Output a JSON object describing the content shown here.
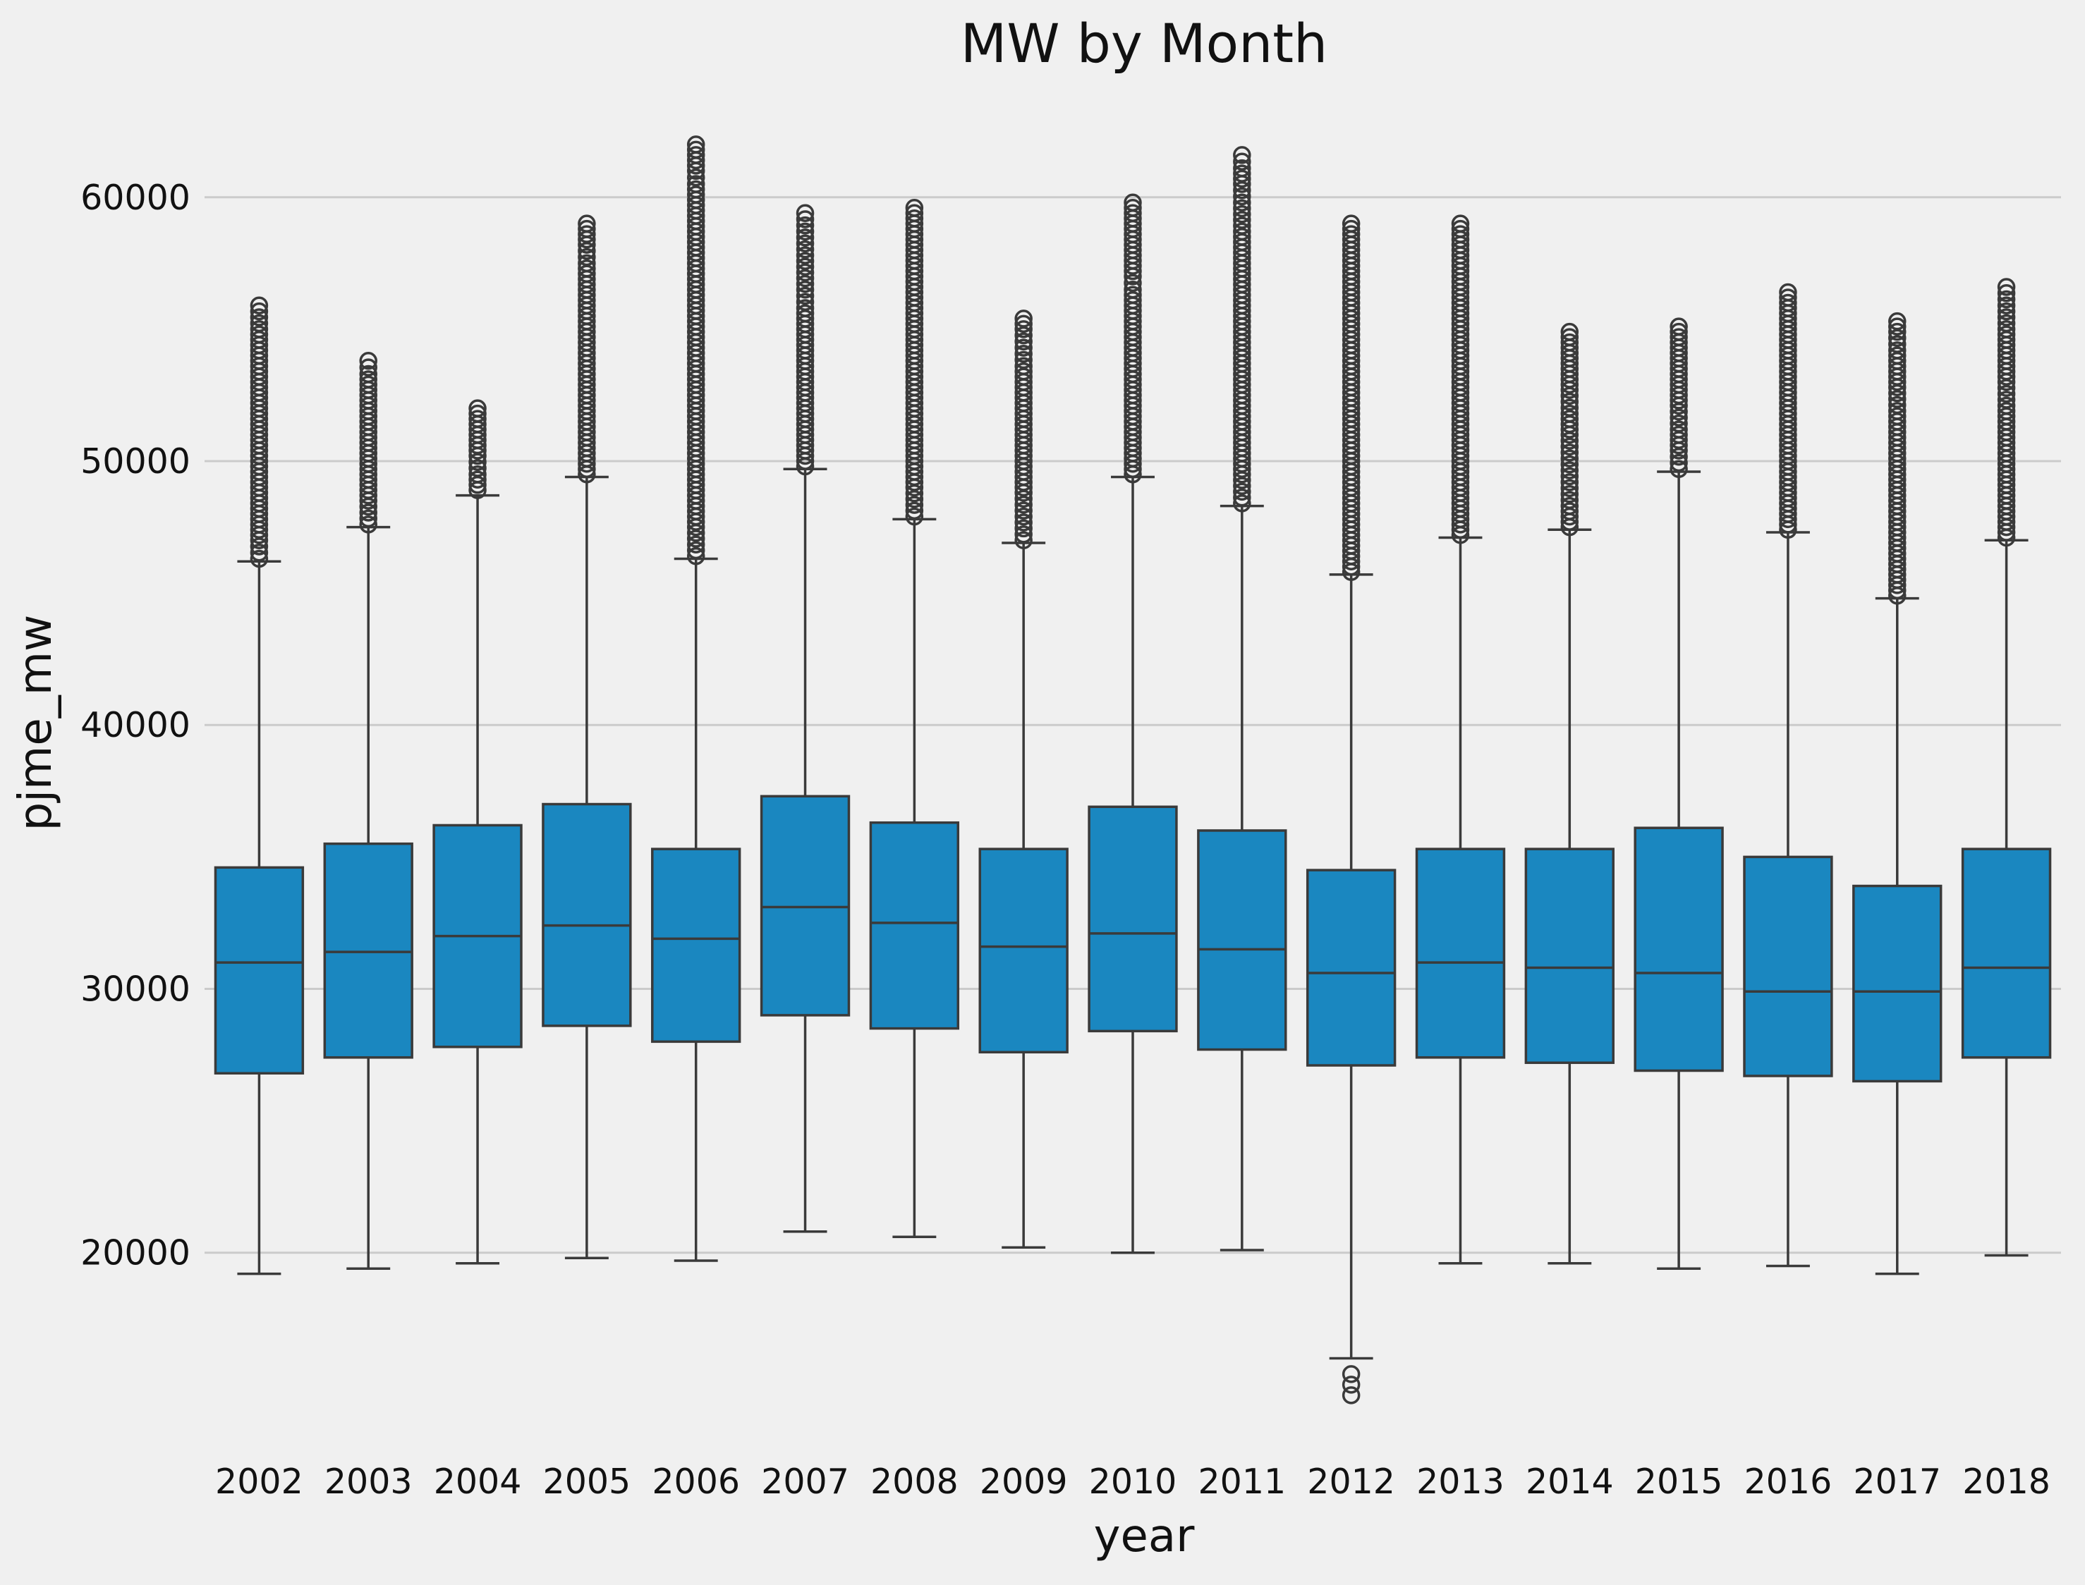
{
  "chart_data": {
    "type": "box",
    "title": "MW by Month",
    "xlabel": "year",
    "ylabel": "pjme_mw",
    "ylim": [
      13500,
      63200
    ],
    "yticks": [
      20000,
      30000,
      40000,
      50000,
      60000
    ],
    "grid": "y-only",
    "legend": "none",
    "box_color": "#1a87c0",
    "categories": [
      "2002",
      "2003",
      "2004",
      "2005",
      "2006",
      "2007",
      "2008",
      "2009",
      "2010",
      "2011",
      "2012",
      "2013",
      "2014",
      "2015",
      "2016",
      "2017",
      "2018"
    ],
    "series": [
      {
        "year": "2002",
        "whisker_low": 19200,
        "q1": 26800,
        "median": 31000,
        "q3": 34600,
        "whisker_high": 46200,
        "outliers_high": [
          46300,
          47000,
          48000,
          49000,
          50000,
          51000,
          52000,
          53000,
          54000,
          55000,
          55900
        ],
        "outliers_low": []
      },
      {
        "year": "2003",
        "whisker_low": 19400,
        "q1": 27400,
        "median": 31400,
        "q3": 35500,
        "whisker_high": 47500,
        "outliers_high": [
          47600,
          48500,
          49500,
          50500,
          51500,
          52500,
          53300,
          53800
        ],
        "outliers_low": []
      },
      {
        "year": "2004",
        "whisker_low": 19600,
        "q1": 27800,
        "median": 32000,
        "q3": 36200,
        "whisker_high": 48700,
        "outliers_high": [
          48900,
          49500,
          50200,
          51000,
          51600,
          52000
        ],
        "outliers_low": []
      },
      {
        "year": "2005",
        "whisker_low": 19800,
        "q1": 28600,
        "median": 32400,
        "q3": 37000,
        "whisker_high": 49400,
        "outliers_high": [
          49500,
          50500,
          51500,
          52500,
          53500,
          54500,
          55500,
          56500,
          57500,
          58200,
          59000
        ],
        "outliers_low": []
      },
      {
        "year": "2006",
        "whisker_low": 19700,
        "q1": 28000,
        "median": 31900,
        "q3": 35300,
        "whisker_high": 46300,
        "outliers_high": [
          46400,
          47500,
          48500,
          49500,
          50500,
          51500,
          52500,
          53500,
          54500,
          55500,
          56500,
          57500,
          58500,
          59500,
          60500,
          61000,
          61600,
          62000
        ],
        "outliers_low": []
      },
      {
        "year": "2007",
        "whisker_low": 20800,
        "q1": 29000,
        "median": 33100,
        "q3": 37300,
        "whisker_high": 49700,
        "outliers_high": [
          49800,
          50800,
          51800,
          52800,
          53800,
          54800,
          55800,
          56500,
          57800,
          58700,
          59400
        ],
        "outliers_low": []
      },
      {
        "year": "2008",
        "whisker_low": 20600,
        "q1": 28500,
        "median": 32500,
        "q3": 36300,
        "whisker_high": 47800,
        "outliers_high": [
          47900,
          49000,
          50000,
          51000,
          52000,
          53000,
          54000,
          55000,
          56200,
          57200,
          58200,
          59000,
          59600
        ],
        "outliers_low": []
      },
      {
        "year": "2009",
        "whisker_low": 20200,
        "q1": 27600,
        "median": 31600,
        "q3": 35300,
        "whisker_high": 46900,
        "outliers_high": [
          47000,
          47900,
          48800,
          49800,
          50800,
          51800,
          52800,
          53600,
          54300,
          55000,
          55400
        ],
        "outliers_low": []
      },
      {
        "year": "2010",
        "whisker_low": 20000,
        "q1": 28400,
        "median": 32100,
        "q3": 36900,
        "whisker_high": 49400,
        "outliers_high": [
          49500,
          50500,
          51500,
          52500,
          53500,
          54500,
          55500,
          56500,
          57000,
          58200,
          58800,
          59800
        ],
        "outliers_low": []
      },
      {
        "year": "2011",
        "whisker_low": 20100,
        "q1": 27700,
        "median": 31500,
        "q3": 36000,
        "whisker_high": 48300,
        "outliers_high": [
          48400,
          49500,
          50500,
          51500,
          52500,
          53500,
          54500,
          55500,
          56500,
          57500,
          58700,
          59800,
          60500,
          61100,
          61600
        ],
        "outliers_low": []
      },
      {
        "year": "2012",
        "whisker_low": 16000,
        "q1": 27100,
        "median": 30600,
        "q3": 34500,
        "whisker_high": 45700,
        "outliers_high": [
          45800,
          46800,
          47800,
          48800,
          49800,
          50800,
          51800,
          52800,
          53800,
          54800,
          55800,
          56600,
          57400,
          59000
        ],
        "outliers_low": [
          15400,
          15000,
          14600
        ]
      },
      {
        "year": "2013",
        "whisker_low": 19600,
        "q1": 27400,
        "median": 31000,
        "q3": 35300,
        "whisker_high": 47100,
        "outliers_high": [
          47200,
          48200,
          49200,
          50200,
          51200,
          52200,
          53200,
          54200,
          55200,
          56200,
          57200,
          58200,
          59000
        ],
        "outliers_low": []
      },
      {
        "year": "2014",
        "whisker_low": 19600,
        "q1": 27200,
        "median": 30800,
        "q3": 35300,
        "whisker_high": 47400,
        "outliers_high": [
          47500,
          48300,
          49200,
          50100,
          51000,
          51800,
          52700,
          53500,
          54300,
          54900
        ],
        "outliers_low": []
      },
      {
        "year": "2015",
        "whisker_low": 19400,
        "q1": 26900,
        "median": 30600,
        "q3": 36100,
        "whisker_high": 49600,
        "outliers_high": [
          49700,
          50400,
          51200,
          52100,
          52900,
          53500,
          54500,
          55100
        ],
        "outliers_low": []
      },
      {
        "year": "2016",
        "whisker_low": 19500,
        "q1": 26700,
        "median": 29900,
        "q3": 35000,
        "whisker_high": 47300,
        "outliers_high": [
          47400,
          48400,
          49400,
          50400,
          51400,
          52400,
          53400,
          54400,
          55200,
          55800,
          56400
        ],
        "outliers_low": []
      },
      {
        "year": "2017",
        "whisker_low": 19200,
        "q1": 26500,
        "median": 29900,
        "q3": 33900,
        "whisker_high": 44800,
        "outliers_high": [
          44900,
          45900,
          46900,
          47900,
          48900,
          49900,
          50900,
          51900,
          52800,
          53600,
          54200,
          54900,
          55300
        ],
        "outliers_low": []
      },
      {
        "year": "2018",
        "whisker_low": 19900,
        "q1": 27400,
        "median": 30800,
        "q3": 35300,
        "whisker_high": 47000,
        "outliers_high": [
          47100,
          48100,
          49100,
          50100,
          51100,
          52100,
          53000,
          54000,
          55000,
          55900,
          56600
        ],
        "outliers_low": []
      }
    ]
  }
}
